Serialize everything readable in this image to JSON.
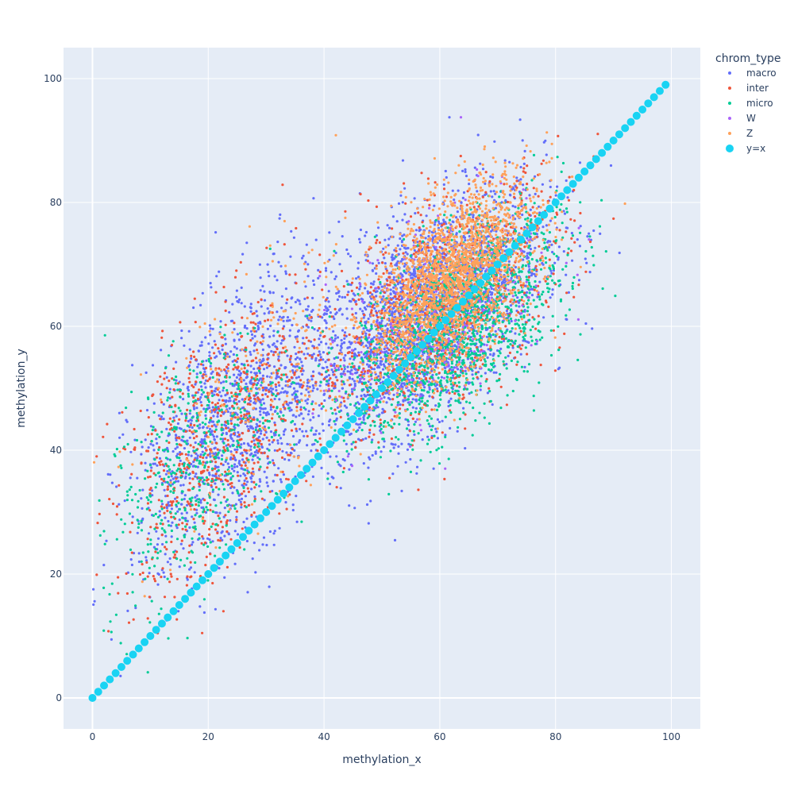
{
  "chart_data": {
    "type": "scatter",
    "title": "",
    "xlabel": "methylation_x",
    "ylabel": "methylation_y",
    "xlim": [
      -5,
      105
    ],
    "ylim": [
      -5,
      105
    ],
    "xticks": [
      0,
      20,
      40,
      60,
      80,
      100
    ],
    "yticks": [
      0,
      20,
      40,
      60,
      80,
      100
    ],
    "grid": true,
    "legend": {
      "title": "chrom_type",
      "position": "top-right, outside plot"
    },
    "plot_bgcolor": "#E5ECF6",
    "series": [
      {
        "name": "macro",
        "color": "#636EFA",
        "marker": "dot",
        "clusters": [
          {
            "center": [
              58,
              62
            ],
            "sd": [
              10,
              10
            ],
            "n": 2600
          },
          {
            "center": [
              25,
              45
            ],
            "sd": [
              9,
              12
            ],
            "n": 1300
          }
        ]
      },
      {
        "name": "inter",
        "color": "#EF553B",
        "marker": "dot",
        "clusters": [
          {
            "center": [
              60,
              63
            ],
            "sd": [
              11,
              10
            ],
            "n": 900
          },
          {
            "center": [
              22,
              42
            ],
            "sd": [
              9,
              12
            ],
            "n": 700
          }
        ]
      },
      {
        "name": "micro",
        "color": "#00CC96",
        "marker": "dot",
        "clusters": [
          {
            "center": [
              63,
              60
            ],
            "sd": [
              9,
              9
            ],
            "n": 1500
          },
          {
            "center": [
              18,
              38
            ],
            "sd": [
              8,
              11
            ],
            "n": 500
          }
        ]
      },
      {
        "name": "W",
        "color": "#AB63FA",
        "marker": "dot",
        "clusters": [
          {
            "center": [
              60,
              62
            ],
            "sd": [
              10,
              10
            ],
            "n": 250
          }
        ]
      },
      {
        "name": "Z",
        "color": "#FFA15A",
        "marker": "dot",
        "clusters": [
          {
            "center": [
              62,
              67
            ],
            "sd": [
              7,
              8
            ],
            "n": 2200
          },
          {
            "center": [
              30,
              50
            ],
            "sd": [
              10,
              12
            ],
            "n": 200
          }
        ]
      },
      {
        "name": "y=x",
        "color": "#19D3F3",
        "marker": "large-dot",
        "x": [
          0,
          1,
          2,
          3,
          4,
          5,
          6,
          7,
          8,
          9,
          10,
          11,
          12,
          13,
          14,
          15,
          16,
          17,
          18,
          19,
          20,
          21,
          22,
          23,
          24,
          25,
          26,
          27,
          28,
          29,
          30,
          31,
          32,
          33,
          34,
          35,
          36,
          37,
          38,
          39,
          40,
          41,
          42,
          43,
          44,
          45,
          46,
          47,
          48,
          49,
          50,
          51,
          52,
          53,
          54,
          55,
          56,
          57,
          58,
          59,
          60,
          61,
          62,
          63,
          64,
          65,
          66,
          67,
          68,
          69,
          70,
          71,
          72,
          73,
          74,
          75,
          76,
          77,
          78,
          79,
          80,
          81,
          82,
          83,
          84,
          85,
          86,
          87,
          88,
          89,
          90,
          91,
          92,
          93,
          94,
          95,
          96,
          97,
          98,
          99
        ],
        "y": [
          0,
          1,
          2,
          3,
          4,
          5,
          6,
          7,
          8,
          9,
          10,
          11,
          12,
          13,
          14,
          15,
          16,
          17,
          18,
          19,
          20,
          21,
          22,
          23,
          24,
          25,
          26,
          27,
          28,
          29,
          30,
          31,
          32,
          33,
          34,
          35,
          36,
          37,
          38,
          39,
          40,
          41,
          42,
          43,
          44,
          45,
          46,
          47,
          48,
          49,
          50,
          51,
          52,
          53,
          54,
          55,
          56,
          57,
          58,
          59,
          60,
          61,
          62,
          63,
          64,
          65,
          66,
          67,
          68,
          69,
          70,
          71,
          72,
          73,
          74,
          75,
          76,
          77,
          78,
          79,
          80,
          81,
          82,
          83,
          84,
          85,
          86,
          87,
          88,
          89,
          90,
          91,
          92,
          93,
          94,
          95,
          96,
          97,
          98,
          99
        ]
      }
    ]
  }
}
